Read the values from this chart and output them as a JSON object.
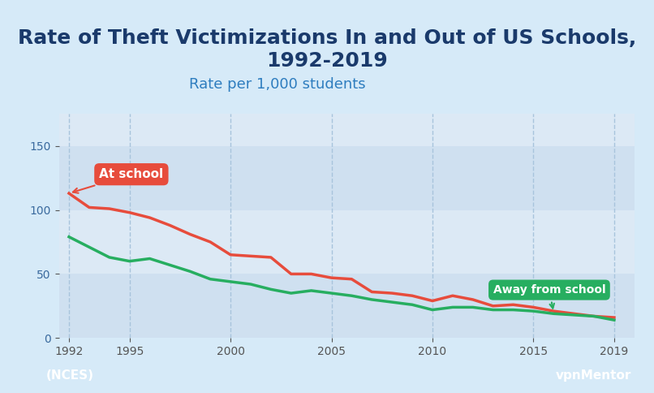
{
  "title": "Rate of Theft Victimizations In and Out of US Schools,\n1992-2019",
  "ylabel": "Rate per 1,000 students",
  "title_fontsize": 18,
  "label_fontsize": 13,
  "bg_outer": "#d6eaf8",
  "bg_title": "#d6eaf8",
  "bg_plot": "#dce9f5",
  "bg_stripe_light": "#cfe0f0",
  "bg_bottom": "#1a5276",
  "at_school_color": "#e74c3c",
  "away_school_color": "#27ae60",
  "at_school_label": "At school",
  "away_school_label": "Away from school",
  "source_label": "(NCES)",
  "years": [
    1992,
    1993,
    1994,
    1995,
    1996,
    1997,
    1998,
    1999,
    2000,
    2001,
    2002,
    2003,
    2004,
    2005,
    2006,
    2007,
    2008,
    2009,
    2010,
    2011,
    2012,
    2013,
    2014,
    2015,
    2016,
    2017,
    2018,
    2019
  ],
  "at_school": [
    113,
    102,
    101,
    98,
    94,
    88,
    81,
    75,
    65,
    64,
    63,
    50,
    50,
    47,
    46,
    36,
    35,
    33,
    29,
    33,
    30,
    25,
    26,
    24,
    21,
    19,
    17,
    16
  ],
  "away_school": [
    79,
    71,
    63,
    60,
    62,
    57,
    52,
    46,
    44,
    42,
    38,
    35,
    37,
    35,
    33,
    30,
    28,
    26,
    22,
    24,
    24,
    22,
    22,
    21,
    19,
    18,
    17,
    14
  ],
  "yticks": [
    0,
    50,
    100,
    150
  ],
  "xticks": [
    1992,
    1995,
    2000,
    2005,
    2010,
    2015,
    2019
  ],
  "ylim": [
    0,
    175
  ],
  "xlim": [
    1991.5,
    2020
  ]
}
